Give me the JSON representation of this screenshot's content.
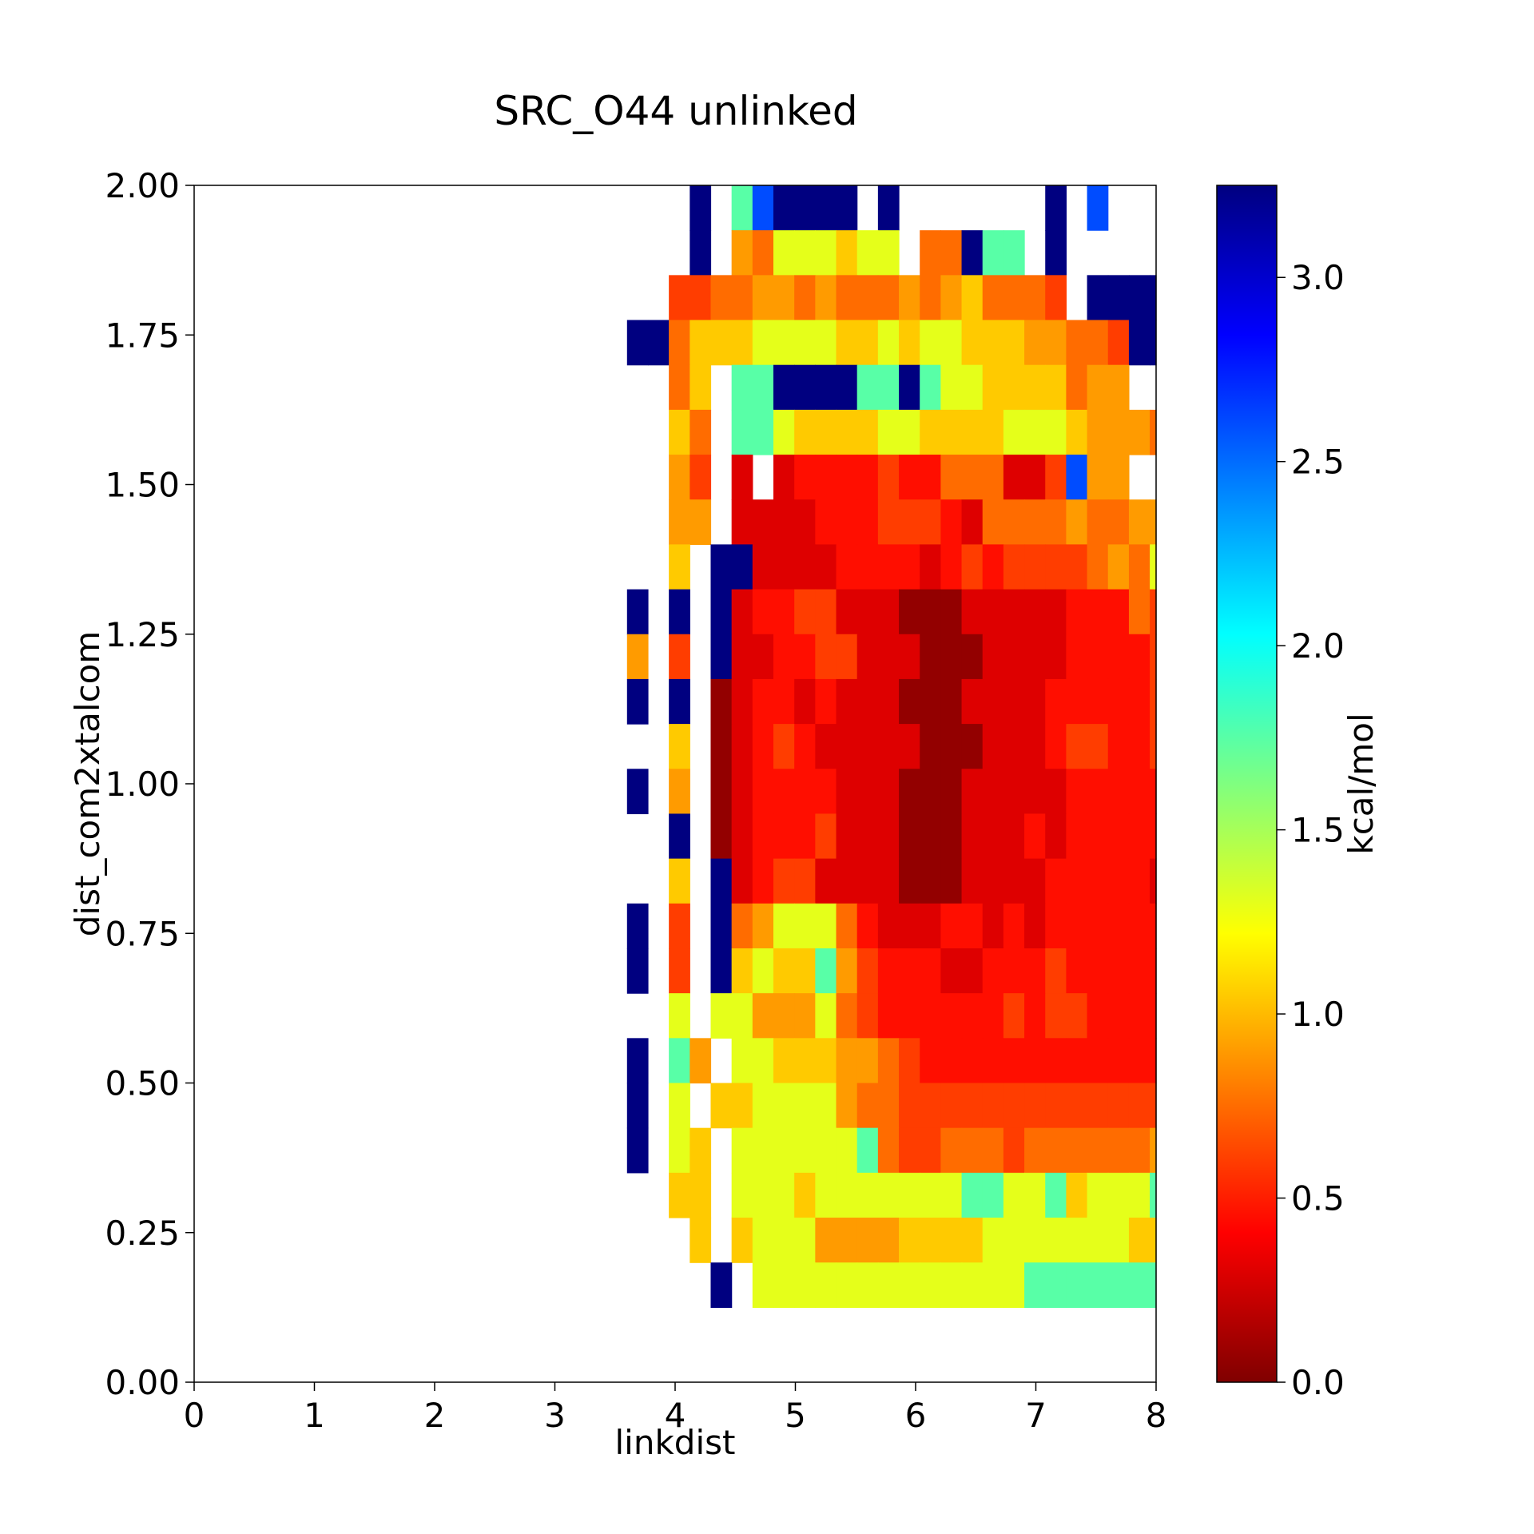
{
  "chart_data": {
    "type": "heatmap",
    "title": "SRC_O44 unlinked",
    "xlabel": "linkdist",
    "ylabel": "dist_com2xtalcom",
    "xlim": [
      0,
      8
    ],
    "ylim": [
      0,
      2
    ],
    "x_ticks": [
      "0",
      "1",
      "2",
      "3",
      "4",
      "5",
      "6",
      "7",
      "8"
    ],
    "y_ticks": [
      "0.00",
      "0.25",
      "0.50",
      "0.75",
      "1.00",
      "1.25",
      "1.50",
      "1.75",
      "2.00"
    ],
    "colorbar": {
      "label": "kcal/mol",
      "range": [
        0,
        3.25
      ],
      "ticks": [
        "0.0",
        "0.5",
        "1.0",
        "1.5",
        "2.0",
        "2.5",
        "3.0"
      ],
      "colormap": "jet"
    },
    "bins": {
      "x_start": 3.6,
      "x_width": 0.1739,
      "y_start": 0.05,
      "y_width": 0.075
    },
    "rows": [
      "...9.8-9999.9.......9.-",
      "...9.54777677.44988.9.",
      "..3344554544454564443.99999",
      "994666777766767766655443999",
      "..46.8899998898776666455",
      "..64.8876666776666777655544",
      "..53.1.12222322444113-55",
      "..55.1111222333214444544555",
      "..6.99111122221232333345477",
      "9.9.912233111000111112224335",
      "5.3.911223311100011112222345",
      "9.9.012212111000111122222332",
      "..6.0123211111000111233223334",
      "9.5.012222111000111112222224",
      "..9.0122231110001112122222333",
      "..6.91233111100011112222212",
      "9.3.945777421112212122222222",
      "9.3.967668532221122232222221",
      "..7.7755574322222232332222221",
      "9.85.7766655432222222222222",
      "9.7.6677775443333333333333332",
      "9.76.7777778433444344444455666",
      "..66.7776777777788778677787767",
      "...6.67775555666677777776667",
      "....9.77777777777778888888",
      "......."
    ]
  }
}
